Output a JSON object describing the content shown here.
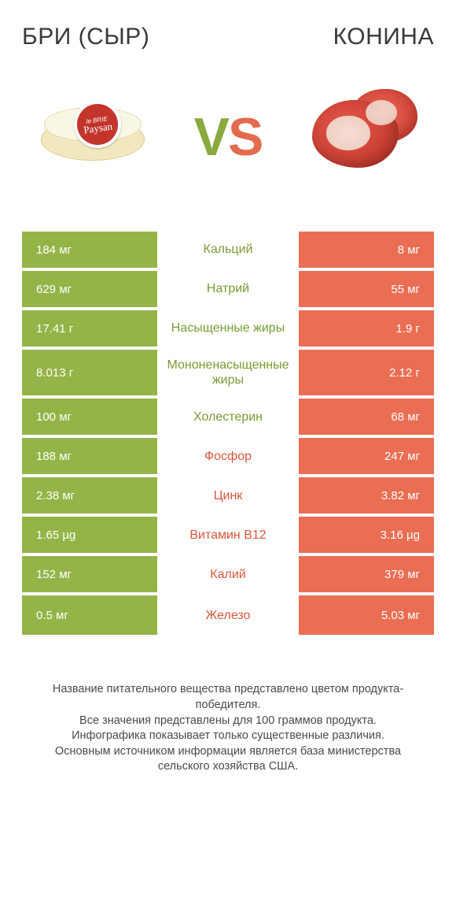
{
  "header": {
    "left_title": "БРИ (СЫР)",
    "right_title": "КОНИНА"
  },
  "hero": {
    "vs_v": "V",
    "vs_s": "S",
    "cheese_label_small": "le BRIE",
    "cheese_label_big": "Paysan"
  },
  "colors": {
    "green": "#94b447",
    "orange": "#ea6e53",
    "green_text": "#7a9a33",
    "orange_text": "#d9563c",
    "background": "#ffffff"
  },
  "comparison": {
    "left_color": "green",
    "right_color": "orange",
    "rows": [
      {
        "label": "Кальций",
        "left": "184 мг",
        "right": "8 мг",
        "winner": "left"
      },
      {
        "label": "Натрий",
        "left": "629 мг",
        "right": "55 мг",
        "winner": "left"
      },
      {
        "label": "Насыщенные жиры",
        "left": "17.41 г",
        "right": "1.9 г",
        "winner": "left"
      },
      {
        "label": "Мононенасыщенные жиры",
        "left": "8.013 г",
        "right": "2.12 г",
        "winner": "left"
      },
      {
        "label": "Холестерин",
        "left": "100 мг",
        "right": "68 мг",
        "winner": "left"
      },
      {
        "label": "Фосфор",
        "left": "188 мг",
        "right": "247 мг",
        "winner": "right"
      },
      {
        "label": "Цинк",
        "left": "2.38 мг",
        "right": "3.82 мг",
        "winner": "right"
      },
      {
        "label": "Витамин B12",
        "left": "1.65 µg",
        "right": "3.16 µg",
        "winner": "right"
      },
      {
        "label": "Калий",
        "left": "152 мг",
        "right": "379 мг",
        "winner": "right"
      },
      {
        "label": "Железо",
        "left": "0.5 мг",
        "right": "5.03 мг",
        "winner": "right"
      }
    ]
  },
  "footer": {
    "line1": "Название питательного вещества представлено цветом продукта-победителя.",
    "line2": "Все значения представлены для 100 граммов продукта.",
    "line3": "Инфографика показывает только существенные различия.",
    "line4": "Основным источником информации является база министерства сельского хозяйства США."
  }
}
